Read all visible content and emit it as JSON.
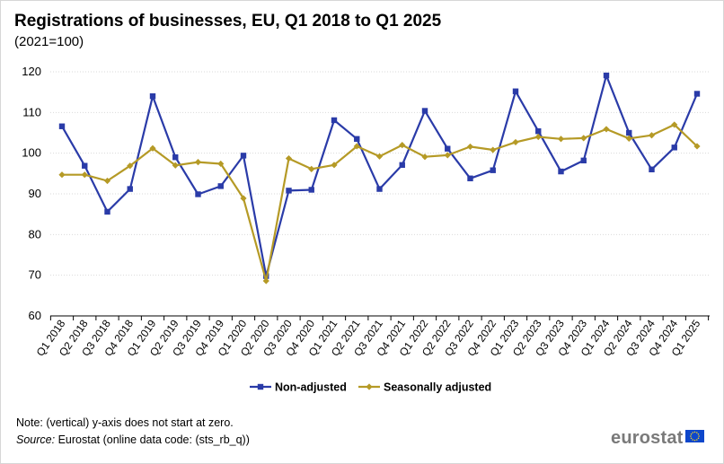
{
  "title": "Registrations of businesses, EU, Q1 2018 to Q1 2025",
  "subtitle": "(2021=100)",
  "note": "Note: (vertical) y-axis does not start at zero.",
  "source_label": "Source:",
  "source_text": " Eurostat (online data code: (sts_rb_q))",
  "logo_text": "eurostat",
  "colors": {
    "non_adjusted": "#2a3ba8",
    "seasonally_adjusted": "#b59a26",
    "grid": "#d9d9d9",
    "brand_flag": "#0e47cb"
  },
  "chart_data": {
    "type": "line",
    "categories": [
      "Q1 2018",
      "Q2 2018",
      "Q3 2018",
      "Q4 2018",
      "Q1 2019",
      "Q2 2019",
      "Q3 2019",
      "Q4 2019",
      "Q1 2020",
      "Q2 2020",
      "Q3 2020",
      "Q4 2020",
      "Q1 2021",
      "Q2 2021",
      "Q3 2021",
      "Q4 2021",
      "Q1 2022",
      "Q2 2022",
      "Q3 2022",
      "Q4 2022",
      "Q1 2023",
      "Q2 2023",
      "Q3 2023",
      "Q4 2023",
      "Q1 2024",
      "Q2 2024",
      "Q3 2024",
      "Q4 2024",
      "Q1 2025"
    ],
    "ylim": [
      60,
      120
    ],
    "yticks": [
      60,
      70,
      80,
      90,
      100,
      110,
      120
    ],
    "grid": true,
    "legend": "bottom",
    "series": [
      {
        "name": "Non-adjusted",
        "marker": "square",
        "color": "#2a3ba8",
        "values": [
          106.6,
          96.9,
          85.6,
          91.2,
          114.0,
          99.0,
          89.9,
          91.9,
          99.4,
          69.8,
          90.8,
          91.0,
          108.1,
          103.5,
          91.2,
          97.1,
          110.4,
          101.1,
          93.8,
          95.8,
          115.2,
          105.4,
          95.5,
          98.2,
          119.1,
          105.0,
          96.0,
          101.4,
          114.6
        ]
      },
      {
        "name": "Seasonally adjusted",
        "marker": "diamond",
        "color": "#b59a26",
        "values": [
          94.7,
          94.7,
          93.2,
          96.9,
          101.2,
          97.0,
          97.8,
          97.4,
          88.9,
          68.6,
          98.7,
          96.1,
          97.1,
          101.7,
          99.2,
          102.0,
          99.1,
          99.5,
          101.6,
          100.8,
          102.7,
          104.0,
          103.5,
          103.7,
          105.9,
          103.6,
          104.4,
          107.0,
          101.7
        ]
      }
    ]
  }
}
